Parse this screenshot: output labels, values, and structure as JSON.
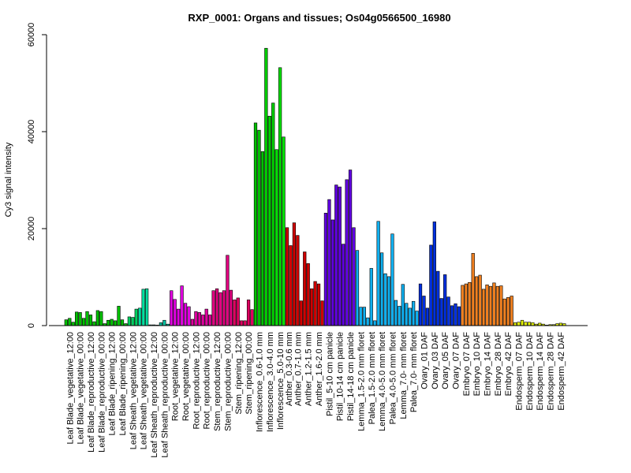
{
  "chart_data": {
    "type": "bar",
    "title": "RXP_0001: Organs and tissues; Os04g0566500_16980",
    "ylabel": "Cy3 signal intensity",
    "xlabel": "",
    "ylim": [
      0,
      60000
    ],
    "yticks": [
      0,
      20000,
      40000,
      60000
    ],
    "grid": false,
    "legend": "none",
    "groups": [
      {
        "label": "Leaf Blade_vegetative_12:00",
        "color": "#00c000",
        "values": [
          1200,
          1500,
          700
        ]
      },
      {
        "label": "Leaf Blade_vegetative_00:00",
        "color": "#00c000",
        "values": [
          2800,
          2700,
          1500
        ]
      },
      {
        "label": "Leaf Blade_reproductive_12:00",
        "color": "#00c000",
        "values": [
          2900,
          2200,
          800
        ]
      },
      {
        "label": "Leaf Blade_reproductive_00:00",
        "color": "#00c000",
        "values": [
          3100,
          2900,
          400
        ]
      },
      {
        "label": "Leaf Blade_ripening_12:00",
        "color": "#00c000",
        "values": [
          1100,
          1300,
          1000
        ]
      },
      {
        "label": "Leaf Blade_ripening_00:00",
        "color": "#00c000",
        "values": [
          4000,
          1200,
          400
        ]
      },
      {
        "label": "Leaf Sheath_vegetative_12:00",
        "color": "#00d060",
        "values": [
          1800,
          1700,
          3400
        ]
      },
      {
        "label": "Leaf Sheath_vegetative_00:00",
        "color": "#00e0a0",
        "values": [
          3600,
          7500,
          7600
        ]
      },
      {
        "label": "Leaf Sheath_reproductive_12:00",
        "color": "#00d0a0",
        "values": [
          150,
          150,
          100
        ]
      },
      {
        "label": "Leaf Sheath_reproductive_00:00",
        "color": "#00c0a0",
        "values": [
          600,
          1100,
          300
        ]
      },
      {
        "label": "Root_vegetative_12:00",
        "color": "#e000e0",
        "values": [
          7200,
          5400,
          3400
        ]
      },
      {
        "label": "Root_vegetative_00:00",
        "color": "#e000e0",
        "values": [
          8200,
          4600,
          3900
        ]
      },
      {
        "label": "Root_reproductive_12:00",
        "color": "#e000a0",
        "values": [
          1300,
          2900,
          2700
        ]
      },
      {
        "label": "Root_reproductive_00:00",
        "color": "#e000a0",
        "values": [
          2200,
          3400,
          2200
        ]
      },
      {
        "label": "Stem_reproductive_12:00",
        "color": "#e00080",
        "values": [
          7200,
          7600,
          6800
        ]
      },
      {
        "label": "Stem_reproductive_00:00",
        "color": "#e00080",
        "values": [
          7200,
          14500,
          7300
        ]
      },
      {
        "label": "Stem_ripening_12:00",
        "color": "#e00060",
        "values": [
          5300,
          5700,
          1000
        ]
      },
      {
        "label": "Stem_ripening_00:00",
        "color": "#e00060",
        "values": [
          1000,
          5300,
          3300
        ]
      },
      {
        "label": "Inflorescence_0.6-1.0 mm",
        "color": "#00c000",
        "values": [
          41800,
          40300,
          35900
        ]
      },
      {
        "label": "Inflorescence_3.0-4.0 mm",
        "color": "#00d000",
        "values": [
          57200,
          43200,
          45900
        ]
      },
      {
        "label": "Inflorescence_5.0-10 mm",
        "color": "#00e000",
        "values": [
          36300,
          53200,
          38900
        ]
      },
      {
        "label": "Anther_0.3-0.6 mm",
        "color": "#d00000",
        "values": [
          20200,
          16500
        ]
      },
      {
        "label": "Anther_0.7-1.0 mm",
        "color": "#d00000",
        "values": [
          21200,
          18600,
          5100
        ]
      },
      {
        "label": "Anther_1.2-1.5 mm",
        "color": "#d00000",
        "values": [
          15200,
          12800,
          7600
        ]
      },
      {
        "label": "Anther_1.6-2.0 mm",
        "color": "#d00000",
        "values": [
          9100,
          8600,
          5100
        ]
      },
      {
        "label": "Pistil_5-10 cm panicle",
        "color": "#6000e0",
        "values": [
          23200,
          26000,
          21800
        ]
      },
      {
        "label": "Pistil_10-14 cm panicle",
        "color": "#6000e0",
        "values": [
          29000,
          28600,
          16800
        ]
      },
      {
        "label": "Pistil_14-18 cm panicle",
        "color": "#6000e0",
        "values": [
          30100,
          32100,
          20200
        ]
      },
      {
        "label": "Lemma_1.5-2.0 mm floret",
        "color": "#10b0f0",
        "values": [
          15500,
          3800,
          3800
        ]
      },
      {
        "label": "Palea_1.5-2.0 mm floret",
        "color": "#10b0f0",
        "values": [
          1600,
          11800,
          1000
        ]
      },
      {
        "label": "Lemma_4.0-5.0 mm floret",
        "color": "#10b0f0",
        "values": [
          21500,
          15000,
          10700
        ]
      },
      {
        "label": "Palea_4.0-5.0 mm floret",
        "color": "#10b0f0",
        "values": [
          10100,
          18900,
          5200
        ]
      },
      {
        "label": "Lemma_7.0- mm floret",
        "color": "#10b0f0",
        "values": [
          4000,
          8500,
          4600
        ]
      },
      {
        "label": "Palea_7.0- mm floret",
        "color": "#10b0f0",
        "values": [
          3600,
          5000,
          3000
        ]
      },
      {
        "label": "Ovary_01 DAF",
        "color": "#0030e0",
        "values": [
          8600,
          6100,
          3600
        ]
      },
      {
        "label": "Ovary_03 DAF",
        "color": "#0030e0",
        "values": [
          16600,
          21400,
          11200
        ]
      },
      {
        "label": "Ovary_05 DAF",
        "color": "#0030e0",
        "values": [
          5600,
          10500,
          5900
        ]
      },
      {
        "label": "Ovary_07 DAF",
        "color": "#0030e0",
        "values": [
          4100,
          4500,
          3900
        ]
      },
      {
        "label": "Embryo_07 DAF",
        "color": "#f08020",
        "values": [
          8300,
          8600,
          8900
        ]
      },
      {
        "label": "Embryo_10 DAF",
        "color": "#f08020",
        "values": [
          14900,
          10100,
          10400
        ]
      },
      {
        "label": "Embryo_14 DAF",
        "color": "#f08020",
        "values": [
          7500,
          8400,
          8100
        ]
      },
      {
        "label": "Embryo_28 DAF",
        "color": "#f08020",
        "values": [
          8800,
          8100,
          8200
        ]
      },
      {
        "label": "Embryo_42 DAF",
        "color": "#f08020",
        "values": [
          5500,
          5800,
          6100
        ]
      },
      {
        "label": "Endosperm_07 DAF",
        "color": "#e0f000",
        "values": [
          600,
          700,
          1100
        ]
      },
      {
        "label": "Endosperm_10 DAF",
        "color": "#e0f000",
        "values": [
          700,
          700,
          600
        ]
      },
      {
        "label": "Endosperm_14 DAF",
        "color": "#e0f000",
        "values": [
          300,
          500,
          300
        ]
      },
      {
        "label": "Endosperm_28 DAF",
        "color": "#e0f000",
        "values": [
          100,
          200,
          200
        ]
      },
      {
        "label": "Endosperm_42 DAF",
        "color": "#e0f000",
        "values": [
          400,
          500,
          400
        ]
      }
    ]
  }
}
